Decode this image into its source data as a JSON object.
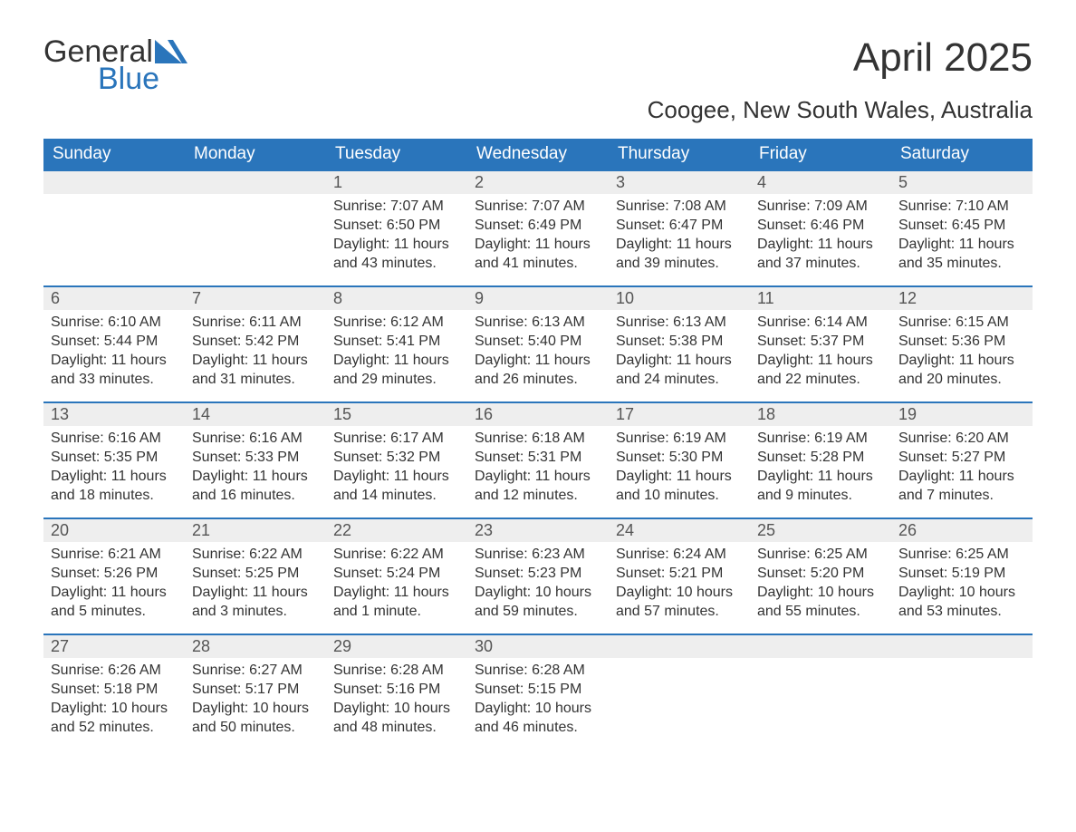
{
  "brand": {
    "word1": "General",
    "word2": "Blue"
  },
  "title": "April 2025",
  "location": "Coogee, New South Wales, Australia",
  "colors": {
    "header_bg": "#2a75bb",
    "header_text": "#ffffff",
    "daynum_bg": "#eeeeee",
    "daynum_text": "#555555",
    "body_text": "#333333",
    "row_border": "#2a75bb",
    "page_bg": "#ffffff"
  },
  "typography": {
    "month_title_pt": 44,
    "location_pt": 26,
    "weekday_pt": 19,
    "daynum_pt": 18,
    "body_pt": 16,
    "font_family": "Segoe UI"
  },
  "weekdays": [
    "Sunday",
    "Monday",
    "Tuesday",
    "Wednesday",
    "Thursday",
    "Friday",
    "Saturday"
  ],
  "weeks": [
    [
      null,
      null,
      {
        "n": "1",
        "sunrise": "Sunrise: 7:07 AM",
        "sunset": "Sunset: 6:50 PM",
        "daylight": "Daylight: 11 hours and 43 minutes."
      },
      {
        "n": "2",
        "sunrise": "Sunrise: 7:07 AM",
        "sunset": "Sunset: 6:49 PM",
        "daylight": "Daylight: 11 hours and 41 minutes."
      },
      {
        "n": "3",
        "sunrise": "Sunrise: 7:08 AM",
        "sunset": "Sunset: 6:47 PM",
        "daylight": "Daylight: 11 hours and 39 minutes."
      },
      {
        "n": "4",
        "sunrise": "Sunrise: 7:09 AM",
        "sunset": "Sunset: 6:46 PM",
        "daylight": "Daylight: 11 hours and 37 minutes."
      },
      {
        "n": "5",
        "sunrise": "Sunrise: 7:10 AM",
        "sunset": "Sunset: 6:45 PM",
        "daylight": "Daylight: 11 hours and 35 minutes."
      }
    ],
    [
      {
        "n": "6",
        "sunrise": "Sunrise: 6:10 AM",
        "sunset": "Sunset: 5:44 PM",
        "daylight": "Daylight: 11 hours and 33 minutes."
      },
      {
        "n": "7",
        "sunrise": "Sunrise: 6:11 AM",
        "sunset": "Sunset: 5:42 PM",
        "daylight": "Daylight: 11 hours and 31 minutes."
      },
      {
        "n": "8",
        "sunrise": "Sunrise: 6:12 AM",
        "sunset": "Sunset: 5:41 PM",
        "daylight": "Daylight: 11 hours and 29 minutes."
      },
      {
        "n": "9",
        "sunrise": "Sunrise: 6:13 AM",
        "sunset": "Sunset: 5:40 PM",
        "daylight": "Daylight: 11 hours and 26 minutes."
      },
      {
        "n": "10",
        "sunrise": "Sunrise: 6:13 AM",
        "sunset": "Sunset: 5:38 PM",
        "daylight": "Daylight: 11 hours and 24 minutes."
      },
      {
        "n": "11",
        "sunrise": "Sunrise: 6:14 AM",
        "sunset": "Sunset: 5:37 PM",
        "daylight": "Daylight: 11 hours and 22 minutes."
      },
      {
        "n": "12",
        "sunrise": "Sunrise: 6:15 AM",
        "sunset": "Sunset: 5:36 PM",
        "daylight": "Daylight: 11 hours and 20 minutes."
      }
    ],
    [
      {
        "n": "13",
        "sunrise": "Sunrise: 6:16 AM",
        "sunset": "Sunset: 5:35 PM",
        "daylight": "Daylight: 11 hours and 18 minutes."
      },
      {
        "n": "14",
        "sunrise": "Sunrise: 6:16 AM",
        "sunset": "Sunset: 5:33 PM",
        "daylight": "Daylight: 11 hours and 16 minutes."
      },
      {
        "n": "15",
        "sunrise": "Sunrise: 6:17 AM",
        "sunset": "Sunset: 5:32 PM",
        "daylight": "Daylight: 11 hours and 14 minutes."
      },
      {
        "n": "16",
        "sunrise": "Sunrise: 6:18 AM",
        "sunset": "Sunset: 5:31 PM",
        "daylight": "Daylight: 11 hours and 12 minutes."
      },
      {
        "n": "17",
        "sunrise": "Sunrise: 6:19 AM",
        "sunset": "Sunset: 5:30 PM",
        "daylight": "Daylight: 11 hours and 10 minutes."
      },
      {
        "n": "18",
        "sunrise": "Sunrise: 6:19 AM",
        "sunset": "Sunset: 5:28 PM",
        "daylight": "Daylight: 11 hours and 9 minutes."
      },
      {
        "n": "19",
        "sunrise": "Sunrise: 6:20 AM",
        "sunset": "Sunset: 5:27 PM",
        "daylight": "Daylight: 11 hours and 7 minutes."
      }
    ],
    [
      {
        "n": "20",
        "sunrise": "Sunrise: 6:21 AM",
        "sunset": "Sunset: 5:26 PM",
        "daylight": "Daylight: 11 hours and 5 minutes."
      },
      {
        "n": "21",
        "sunrise": "Sunrise: 6:22 AM",
        "sunset": "Sunset: 5:25 PM",
        "daylight": "Daylight: 11 hours and 3 minutes."
      },
      {
        "n": "22",
        "sunrise": "Sunrise: 6:22 AM",
        "sunset": "Sunset: 5:24 PM",
        "daylight": "Daylight: 11 hours and 1 minute."
      },
      {
        "n": "23",
        "sunrise": "Sunrise: 6:23 AM",
        "sunset": "Sunset: 5:23 PM",
        "daylight": "Daylight: 10 hours and 59 minutes."
      },
      {
        "n": "24",
        "sunrise": "Sunrise: 6:24 AM",
        "sunset": "Sunset: 5:21 PM",
        "daylight": "Daylight: 10 hours and 57 minutes."
      },
      {
        "n": "25",
        "sunrise": "Sunrise: 6:25 AM",
        "sunset": "Sunset: 5:20 PM",
        "daylight": "Daylight: 10 hours and 55 minutes."
      },
      {
        "n": "26",
        "sunrise": "Sunrise: 6:25 AM",
        "sunset": "Sunset: 5:19 PM",
        "daylight": "Daylight: 10 hours and 53 minutes."
      }
    ],
    [
      {
        "n": "27",
        "sunrise": "Sunrise: 6:26 AM",
        "sunset": "Sunset: 5:18 PM",
        "daylight": "Daylight: 10 hours and 52 minutes."
      },
      {
        "n": "28",
        "sunrise": "Sunrise: 6:27 AM",
        "sunset": "Sunset: 5:17 PM",
        "daylight": "Daylight: 10 hours and 50 minutes."
      },
      {
        "n": "29",
        "sunrise": "Sunrise: 6:28 AM",
        "sunset": "Sunset: 5:16 PM",
        "daylight": "Daylight: 10 hours and 48 minutes."
      },
      {
        "n": "30",
        "sunrise": "Sunrise: 6:28 AM",
        "sunset": "Sunset: 5:15 PM",
        "daylight": "Daylight: 10 hours and 46 minutes."
      },
      null,
      null,
      null
    ]
  ]
}
